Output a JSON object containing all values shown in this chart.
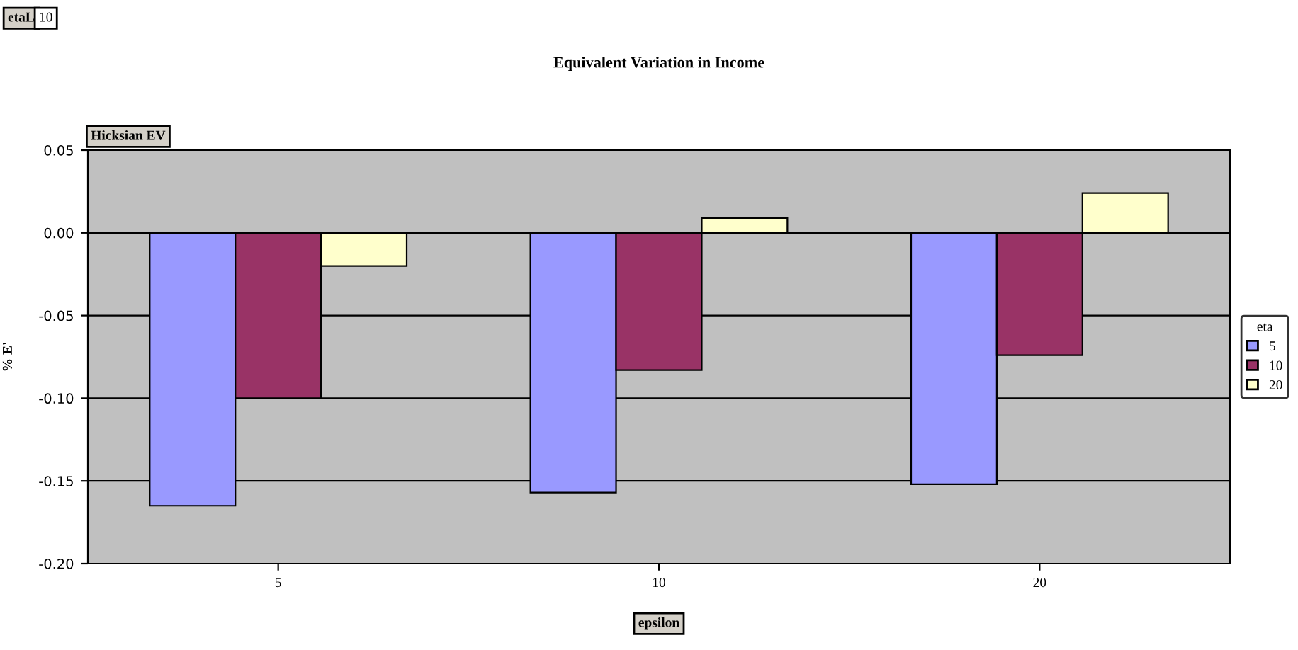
{
  "chart_data": {
    "type": "bar",
    "title": "Equivalent Variation in Income",
    "categories": [
      "5",
      "10",
      "20"
    ],
    "series": [
      {
        "name": "5",
        "color": "#9999ff",
        "values": [
          -0.165,
          -0.157,
          -0.152
        ]
      },
      {
        "name": "10",
        "color": "#993366",
        "values": [
          -0.1,
          -0.083,
          -0.074
        ]
      },
      {
        "name": "20",
        "color": "#ffffcc",
        "values": [
          -0.02,
          0.009,
          0.024
        ]
      }
    ],
    "xlabel": "epsilon",
    "ylabel": "% E'",
    "legend_title": "eta",
    "ylim": [
      -0.2,
      0.05
    ],
    "yticks": [
      {
        "value": -0.2,
        "label": "-0.20"
      },
      {
        "value": -0.15,
        "label": "-0.15"
      },
      {
        "value": -0.1,
        "label": "-0.10"
      },
      {
        "value": -0.05,
        "label": "-0.05"
      },
      {
        "value": 0.0,
        "label": "0.00"
      },
      {
        "value": 0.05,
        "label": "0.05"
      }
    ],
    "grid": "y",
    "legend": "right",
    "annotations": [
      "etaL",
      "10",
      "Hicksian EV"
    ]
  }
}
